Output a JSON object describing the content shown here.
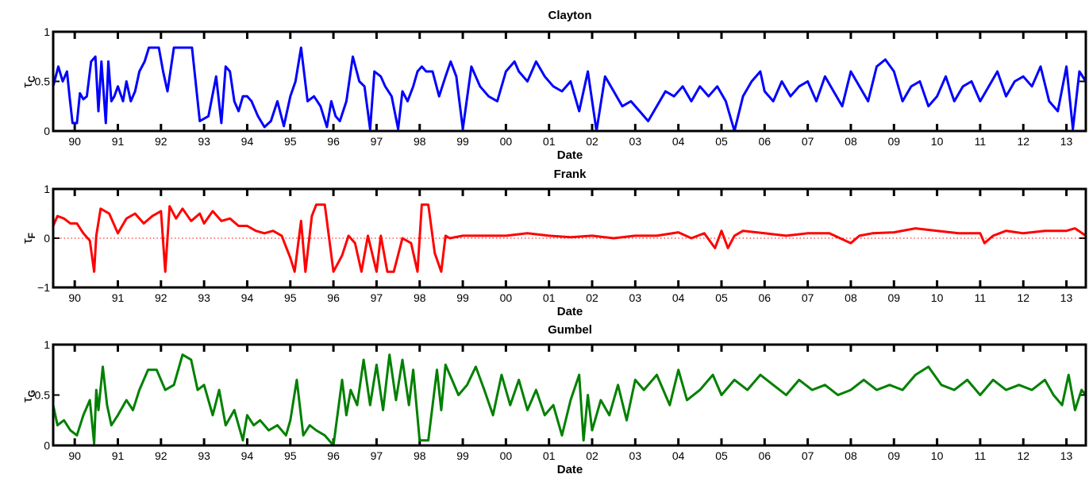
{
  "figure": {
    "background": "#ffffff"
  },
  "chart_data": [
    {
      "type": "line",
      "title": "Clayton",
      "xlabel": "Date",
      "ylabel": "τ",
      "ylabel_sub": "C",
      "color": "#0000ff",
      "xlim": [
        1989.5,
        2013.45
      ],
      "ylim": [
        0,
        1
      ],
      "yticks": [
        0,
        0.5,
        1
      ],
      "ytick_labels": [
        "0",
        "0.5",
        "1"
      ],
      "xtick_labels": [
        "90",
        "91",
        "92",
        "93",
        "94",
        "95",
        "96",
        "97",
        "98",
        "99",
        "00",
        "01",
        "02",
        "03",
        "04",
        "05",
        "06",
        "07",
        "08",
        "09",
        "10",
        "11",
        "12",
        "13"
      ],
      "grid": false,
      "reference_line": null,
      "series": [
        {
          "x": [
            1989.5,
            1989.62,
            1989.72,
            1989.82,
            1989.88,
            1989.95,
            1990.05,
            1990.12,
            1990.2,
            1990.28,
            1990.38,
            1990.48,
            1990.55,
            1990.62,
            1990.72,
            1990.78,
            1990.85,
            1990.92,
            1991.0,
            1991.12,
            1991.2,
            1991.3,
            1991.4,
            1991.5,
            1991.62,
            1991.72,
            1991.85,
            1991.95,
            1992.05,
            1992.15,
            1992.3,
            1992.45,
            1992.6,
            1992.72,
            1992.9,
            1993.1,
            1993.28,
            1993.4,
            1993.5,
            1993.6,
            1993.7,
            1993.8,
            1993.9,
            1994.0,
            1994.1,
            1994.25,
            1994.4,
            1994.55,
            1994.7,
            1994.85,
            1995.0,
            1995.12,
            1995.25,
            1995.4,
            1995.55,
            1995.7,
            1995.85,
            1995.95,
            1996.05,
            1996.15,
            1996.3,
            1996.45,
            1996.6,
            1996.72,
            1996.85,
            1996.95,
            1997.1,
            1997.2,
            1997.35,
            1997.5,
            1997.6,
            1997.72,
            1997.85,
            1997.95,
            1998.05,
            1998.15,
            1998.3,
            1998.45,
            1998.6,
            1998.72,
            1998.85,
            1999.0,
            1999.2,
            1999.4,
            1999.6,
            1999.8,
            2000.0,
            2000.2,
            2000.3,
            2000.5,
            2000.7,
            2000.9,
            2001.1,
            2001.3,
            2001.5,
            2001.7,
            2001.9,
            2002.1,
            2002.3,
            2002.5,
            2002.7,
            2002.9,
            2003.1,
            2003.3,
            2003.5,
            2003.7,
            2003.9,
            2004.1,
            2004.3,
            2004.5,
            2004.7,
            2004.9,
            2005.1,
            2005.3,
            2005.5,
            2005.7,
            2005.9,
            2006.0,
            2006.2,
            2006.4,
            2006.6,
            2006.8,
            2007.0,
            2007.2,
            2007.4,
            2007.6,
            2007.8,
            2008.0,
            2008.2,
            2008.4,
            2008.6,
            2008.8,
            2009.0,
            2009.2,
            2009.4,
            2009.6,
            2009.8,
            2010.0,
            2010.2,
            2010.4,
            2010.6,
            2010.8,
            2011.0,
            2011.2,
            2011.4,
            2011.6,
            2011.8,
            2012.0,
            2012.2,
            2012.4,
            2012.6,
            2012.8,
            2013.0,
            2013.15,
            2013.3,
            2013.45
          ],
          "y": [
            0.45,
            0.65,
            0.5,
            0.6,
            0.35,
            0.08,
            0.08,
            0.38,
            0.32,
            0.35,
            0.7,
            0.75,
            0.2,
            0.7,
            0.08,
            0.7,
            0.3,
            0.35,
            0.45,
            0.3,
            0.5,
            0.3,
            0.4,
            0.6,
            0.7,
            0.84,
            0.84,
            0.84,
            0.6,
            0.4,
            0.84,
            0.84,
            0.84,
            0.84,
            0.1,
            0.15,
            0.55,
            0.08,
            0.65,
            0.6,
            0.3,
            0.2,
            0.35,
            0.35,
            0.3,
            0.15,
            0.04,
            0.1,
            0.3,
            0.05,
            0.35,
            0.5,
            0.84,
            0.3,
            0.35,
            0.25,
            0.04,
            0.3,
            0.15,
            0.1,
            0.3,
            0.75,
            0.5,
            0.45,
            0.02,
            0.6,
            0.55,
            0.45,
            0.35,
            0.02,
            0.4,
            0.3,
            0.45,
            0.6,
            0.65,
            0.6,
            0.6,
            0.35,
            0.55,
            0.7,
            0.55,
            0.02,
            0.65,
            0.45,
            0.35,
            0.3,
            0.6,
            0.7,
            0.6,
            0.5,
            0.7,
            0.55,
            0.45,
            0.4,
            0.5,
            0.2,
            0.6,
            0.0,
            0.55,
            0.4,
            0.25,
            0.3,
            0.2,
            0.1,
            0.25,
            0.4,
            0.35,
            0.45,
            0.3,
            0.45,
            0.35,
            0.45,
            0.3,
            0.0,
            0.35,
            0.5,
            0.6,
            0.4,
            0.3,
            0.5,
            0.35,
            0.45,
            0.5,
            0.3,
            0.55,
            0.4,
            0.25,
            0.6,
            0.45,
            0.3,
            0.65,
            0.72,
            0.6,
            0.3,
            0.45,
            0.5,
            0.25,
            0.35,
            0.55,
            0.3,
            0.45,
            0.5,
            0.3,
            0.45,
            0.6,
            0.35,
            0.5,
            0.55,
            0.45,
            0.65,
            0.3,
            0.2,
            0.65,
            0.02,
            0.6,
            0.5
          ]
        }
      ]
    },
    {
      "type": "line",
      "title": "Frank",
      "xlabel": "Date",
      "ylabel": "τ",
      "ylabel_sub": "F",
      "color": "#ff0000",
      "xlim": [
        1989.5,
        2013.45
      ],
      "ylim": [
        -1,
        1
      ],
      "yticks": [
        -1,
        0,
        1
      ],
      "ytick_labels": [
        "−1",
        "0",
        "1"
      ],
      "xtick_labels": [
        "90",
        "91",
        "92",
        "93",
        "94",
        "95",
        "96",
        "97",
        "98",
        "99",
        "00",
        "01",
        "02",
        "03",
        "04",
        "05",
        "06",
        "07",
        "08",
        "09",
        "10",
        "11",
        "12",
        "13"
      ],
      "grid": false,
      "reference_line": {
        "y": 0,
        "style": "dotted"
      },
      "series": [
        {
          "x": [
            1989.5,
            1989.6,
            1989.75,
            1989.9,
            1990.05,
            1990.2,
            1990.35,
            1990.45,
            1990.5,
            1990.6,
            1990.8,
            1991.0,
            1991.2,
            1991.4,
            1991.6,
            1991.8,
            1992.0,
            1992.1,
            1992.2,
            1992.35,
            1992.5,
            1992.7,
            1992.9,
            1993.0,
            1993.2,
            1993.4,
            1993.6,
            1993.8,
            1994.0,
            1994.2,
            1994.4,
            1994.6,
            1994.8,
            1995.0,
            1995.1,
            1995.25,
            1995.35,
            1995.5,
            1995.6,
            1995.8,
            1996.0,
            1996.2,
            1996.35,
            1996.5,
            1996.65,
            1996.8,
            1997.0,
            1997.1,
            1997.25,
            1997.4,
            1997.6,
            1997.8,
            1997.95,
            1998.05,
            1998.2,
            1998.35,
            1998.5,
            1998.6,
            1998.7,
            1999.0,
            1999.5,
            2000.0,
            2000.5,
            2001.0,
            2001.5,
            2002.0,
            2002.5,
            2003.0,
            2003.5,
            2004.0,
            2004.3,
            2004.6,
            2004.85,
            2005.0,
            2005.15,
            2005.3,
            2005.5,
            2006.0,
            2006.5,
            2007.0,
            2007.5,
            2008.0,
            2008.2,
            2008.5,
            2009.0,
            2009.5,
            2010.0,
            2010.5,
            2011.0,
            2011.1,
            2011.3,
            2011.6,
            2012.0,
            2012.5,
            2013.0,
            2013.2,
            2013.45
          ],
          "y": [
            0.25,
            0.45,
            0.4,
            0.3,
            0.3,
            0.1,
            -0.05,
            -0.68,
            0.05,
            0.6,
            0.5,
            0.1,
            0.4,
            0.5,
            0.3,
            0.45,
            0.55,
            -0.68,
            0.65,
            0.4,
            0.6,
            0.35,
            0.5,
            0.3,
            0.55,
            0.35,
            0.4,
            0.25,
            0.25,
            0.15,
            0.1,
            0.15,
            0.05,
            -0.4,
            -0.68,
            0.35,
            -0.68,
            0.45,
            0.68,
            0.68,
            -0.68,
            -0.35,
            0.05,
            -0.1,
            -0.68,
            0.05,
            -0.68,
            0.05,
            -0.68,
            -0.68,
            0.0,
            -0.1,
            -0.68,
            0.68,
            0.68,
            -0.3,
            -0.68,
            0.05,
            0.0,
            0.05,
            0.05,
            0.05,
            0.1,
            0.05,
            0.02,
            0.05,
            0.0,
            0.05,
            0.05,
            0.12,
            0.0,
            0.1,
            -0.2,
            0.15,
            -0.2,
            0.05,
            0.15,
            0.1,
            0.05,
            0.1,
            0.1,
            -0.1,
            0.05,
            0.1,
            0.12,
            0.2,
            0.15,
            0.1,
            0.1,
            -0.1,
            0.05,
            0.15,
            0.1,
            0.15,
            0.15,
            0.2,
            0.05
          ]
        }
      ]
    },
    {
      "type": "line",
      "title": "Gumbel",
      "xlabel": "Date",
      "ylabel": "τ",
      "ylabel_sub": "G",
      "color": "#008000",
      "xlim": [
        1989.5,
        2013.45
      ],
      "ylim": [
        0,
        1
      ],
      "yticks": [
        0,
        0.5,
        1
      ],
      "ytick_labels": [
        "0",
        "0.5",
        "1"
      ],
      "xtick_labels": [
        "90",
        "91",
        "92",
        "93",
        "94",
        "95",
        "96",
        "97",
        "98",
        "99",
        "00",
        "01",
        "02",
        "03",
        "04",
        "05",
        "06",
        "07",
        "08",
        "09",
        "10",
        "11",
        "12",
        "13"
      ],
      "grid": false,
      "reference_line": null,
      "series": [
        {
          "x": [
            1989.5,
            1989.6,
            1989.75,
            1989.9,
            1990.05,
            1990.2,
            1990.35,
            1990.45,
            1990.5,
            1990.55,
            1990.65,
            1990.75,
            1990.85,
            1991.0,
            1991.2,
            1991.35,
            1991.5,
            1991.7,
            1991.9,
            1992.1,
            1992.3,
            1992.5,
            1992.7,
            1992.85,
            1993.0,
            1993.2,
            1993.35,
            1993.5,
            1993.7,
            1993.9,
            1994.0,
            1994.15,
            1994.3,
            1994.5,
            1994.7,
            1994.9,
            1995.0,
            1995.15,
            1995.3,
            1995.45,
            1995.6,
            1995.8,
            1996.0,
            1996.2,
            1996.3,
            1996.4,
            1996.55,
            1996.7,
            1996.85,
            1997.0,
            1997.15,
            1997.3,
            1997.45,
            1997.6,
            1997.75,
            1997.85,
            1998.0,
            1998.2,
            1998.4,
            1998.5,
            1998.6,
            1998.75,
            1998.9,
            1999.1,
            1999.3,
            1999.5,
            1999.7,
            1999.9,
            2000.1,
            2000.3,
            2000.5,
            2000.7,
            2000.9,
            2001.1,
            2001.3,
            2001.5,
            2001.7,
            2001.8,
            2001.9,
            2002.0,
            2002.2,
            2002.4,
            2002.6,
            2002.8,
            2003.0,
            2003.2,
            2003.5,
            2003.8,
            2004.0,
            2004.2,
            2004.5,
            2004.8,
            2005.0,
            2005.3,
            2005.6,
            2005.9,
            2006.2,
            2006.5,
            2006.8,
            2007.1,
            2007.4,
            2007.7,
            2008.0,
            2008.3,
            2008.6,
            2008.9,
            2009.2,
            2009.5,
            2009.8,
            2010.1,
            2010.4,
            2010.7,
            2011.0,
            2011.3,
            2011.6,
            2011.9,
            2012.2,
            2012.5,
            2012.7,
            2012.9,
            2013.05,
            2013.2,
            2013.35,
            2013.45
          ],
          "y": [
            0.4,
            0.2,
            0.25,
            0.15,
            0.1,
            0.3,
            0.45,
            0.02,
            0.55,
            0.35,
            0.78,
            0.4,
            0.2,
            0.3,
            0.45,
            0.35,
            0.55,
            0.75,
            0.75,
            0.55,
            0.6,
            0.9,
            0.85,
            0.55,
            0.6,
            0.3,
            0.55,
            0.2,
            0.35,
            0.05,
            0.3,
            0.2,
            0.25,
            0.15,
            0.2,
            0.1,
            0.25,
            0.65,
            0.1,
            0.2,
            0.15,
            0.1,
            0.0,
            0.65,
            0.3,
            0.55,
            0.4,
            0.85,
            0.4,
            0.8,
            0.35,
            0.9,
            0.45,
            0.85,
            0.4,
            0.75,
            0.05,
            0.05,
            0.75,
            0.35,
            0.8,
            0.65,
            0.5,
            0.6,
            0.78,
            0.55,
            0.3,
            0.7,
            0.4,
            0.65,
            0.35,
            0.55,
            0.3,
            0.4,
            0.1,
            0.45,
            0.7,
            0.05,
            0.5,
            0.15,
            0.45,
            0.3,
            0.6,
            0.25,
            0.65,
            0.55,
            0.7,
            0.4,
            0.75,
            0.45,
            0.55,
            0.7,
            0.5,
            0.65,
            0.55,
            0.7,
            0.6,
            0.5,
            0.65,
            0.55,
            0.6,
            0.5,
            0.55,
            0.65,
            0.55,
            0.6,
            0.55,
            0.7,
            0.78,
            0.6,
            0.55,
            0.65,
            0.5,
            0.65,
            0.55,
            0.6,
            0.55,
            0.65,
            0.5,
            0.4,
            0.7,
            0.35,
            0.55,
            0.5
          ]
        }
      ]
    }
  ]
}
